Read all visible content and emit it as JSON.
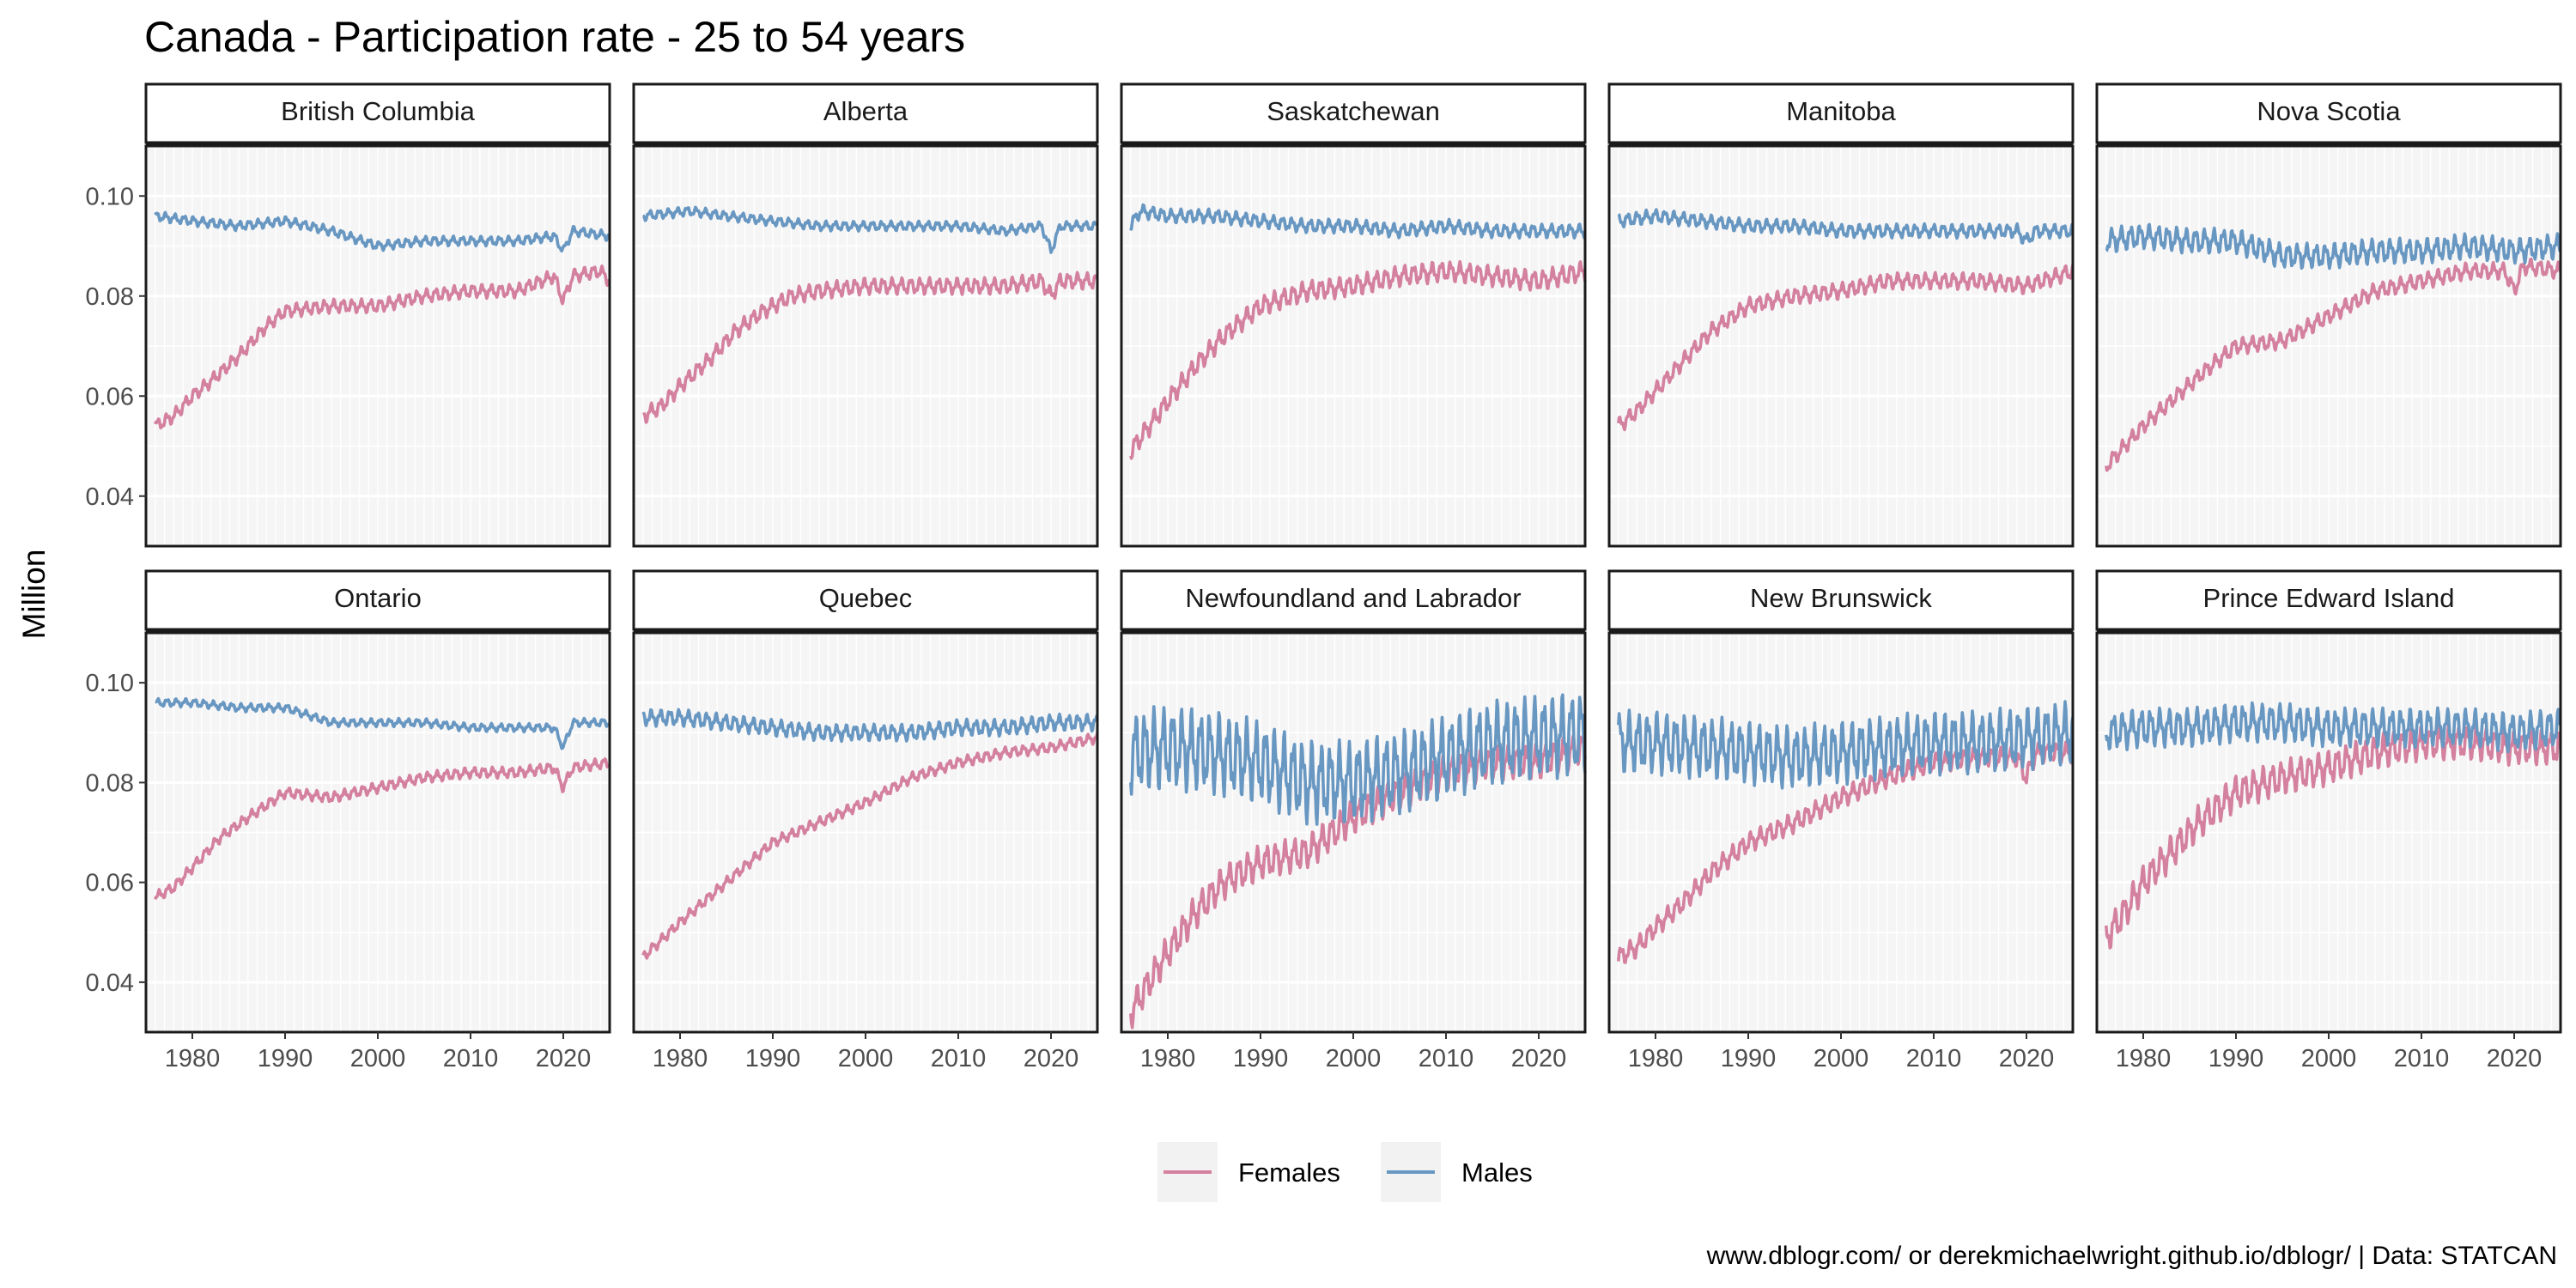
{
  "chart_data": {
    "type": "line",
    "title": "Canada - Participation rate - 25 to 54 years",
    "ylabel": "Million",
    "xlabel": "",
    "caption": "www.dblogr.com/ or derekmichaelwright.github.io/dblogr/ | Data: STATCAN",
    "xlim": [
      1975,
      2025
    ],
    "ylim": [
      0.03,
      0.11
    ],
    "x_ticks": [
      1980,
      1990,
      2000,
      2010,
      2020
    ],
    "x_tick_labels": [
      "1980",
      "1990",
      "2000",
      "2010",
      "2020"
    ],
    "y_ticks": [
      0.04,
      0.06,
      0.08,
      0.1
    ],
    "y_tick_labels": [
      "0.04",
      "0.06",
      "0.08",
      "0.10"
    ],
    "grid": true,
    "legend": {
      "position": "bottom",
      "entries": [
        {
          "name": "Females",
          "color": "#d4809f"
        },
        {
          "name": "Males",
          "color": "#6897c2"
        }
      ]
    },
    "panels": [
      {
        "name": "British Columbia",
        "series": [
          {
            "name": "Females",
            "x": [
              1976,
              1978,
              1980,
              1982,
              1985,
              1988,
              1990,
              1995,
              2000,
              2005,
              2010,
              2015,
              2019,
              2020,
              2021,
              2024,
              2025
            ],
            "y": [
              0.054,
              0.056,
              0.06,
              0.063,
              0.068,
              0.074,
              0.077,
              0.078,
              0.078,
              0.08,
              0.081,
              0.081,
              0.084,
              0.079,
              0.084,
              0.085,
              0.083
            ],
            "amp": 0.001
          },
          {
            "name": "Males",
            "x": [
              1976,
              1980,
              1985,
              1990,
              1995,
              2000,
              2005,
              2010,
              2015,
              2019,
              2020,
              2021,
              2025
            ],
            "y": [
              0.096,
              0.095,
              0.094,
              0.095,
              0.093,
              0.09,
              0.091,
              0.091,
              0.091,
              0.092,
              0.089,
              0.093,
              0.092
            ],
            "amp": 0.0007
          }
        ]
      },
      {
        "name": "Alberta",
        "series": [
          {
            "name": "Females",
            "x": [
              1976,
              1978,
              1980,
              1983,
              1986,
              1989,
              1992,
              1995,
              2000,
              2005,
              2010,
              2015,
              2019,
              2020,
              2021,
              2025
            ],
            "y": [
              0.056,
              0.058,
              0.062,
              0.067,
              0.073,
              0.077,
              0.08,
              0.081,
              0.082,
              0.082,
              0.082,
              0.082,
              0.083,
              0.08,
              0.083,
              0.083
            ],
            "amp": 0.0012
          },
          {
            "name": "Males",
            "x": [
              1976,
              1981,
              1985,
              1990,
              1995,
              2000,
              2005,
              2010,
              2015,
              2019,
              2020,
              2021,
              2025
            ],
            "y": [
              0.096,
              0.097,
              0.096,
              0.095,
              0.094,
              0.094,
              0.094,
              0.094,
              0.093,
              0.094,
              0.089,
              0.094,
              0.094
            ],
            "amp": 0.0007
          }
        ]
      },
      {
        "name": "Saskatchewan",
        "series": [
          {
            "name": "Females",
            "x": [
              1976,
              1978,
              1980,
              1983,
              1986,
              1990,
              1995,
              2000,
              2005,
              2010,
              2015,
              2020,
              2025
            ],
            "y": [
              0.049,
              0.054,
              0.059,
              0.066,
              0.072,
              0.078,
              0.081,
              0.082,
              0.084,
              0.085,
              0.084,
              0.083,
              0.085
            ],
            "amp": 0.0015
          },
          {
            "name": "Males",
            "x": [
              1976,
              1977,
              1980,
              1985,
              1990,
              1995,
              2000,
              2005,
              2010,
              2015,
              2020,
              2025
            ],
            "y": [
              0.094,
              0.097,
              0.096,
              0.096,
              0.095,
              0.094,
              0.094,
              0.093,
              0.094,
              0.093,
              0.093,
              0.093
            ],
            "amp": 0.001
          }
        ]
      },
      {
        "name": "Manitoba",
        "series": [
          {
            "name": "Females",
            "x": [
              1976,
              1978,
              1980,
              1983,
              1986,
              1990,
              1995,
              2000,
              2005,
              2010,
              2015,
              2020,
              2025
            ],
            "y": [
              0.054,
              0.057,
              0.061,
              0.067,
              0.073,
              0.078,
              0.08,
              0.081,
              0.083,
              0.083,
              0.083,
              0.082,
              0.085
            ],
            "amp": 0.0012
          },
          {
            "name": "Males",
            "x": [
              1976,
              1980,
              1985,
              1990,
              1995,
              2000,
              2005,
              2010,
              2015,
              2019,
              2020,
              2021,
              2025
            ],
            "y": [
              0.095,
              0.096,
              0.095,
              0.094,
              0.094,
              0.093,
              0.093,
              0.093,
              0.093,
              0.093,
              0.091,
              0.093,
              0.093
            ],
            "amp": 0.001
          }
        ]
      },
      {
        "name": "Nova Scotia",
        "series": [
          {
            "name": "Females",
            "x": [
              1976,
              1978,
              1980,
              1983,
              1986,
              1990,
              1995,
              2000,
              2005,
              2010,
              2015,
              2019,
              2020,
              2021,
              2025
            ],
            "y": [
              0.046,
              0.05,
              0.054,
              0.059,
              0.064,
              0.07,
              0.071,
              0.076,
              0.081,
              0.083,
              0.085,
              0.085,
              0.081,
              0.086,
              0.085
            ],
            "amp": 0.0012
          },
          {
            "name": "Males",
            "x": [
              1976,
              1980,
              1985,
              1990,
              1995,
              2000,
              2005,
              2010,
              2015,
              2020,
              2025
            ],
            "y": [
              0.091,
              0.092,
              0.091,
              0.091,
              0.088,
              0.088,
              0.089,
              0.089,
              0.09,
              0.089,
              0.09
            ],
            "amp": 0.0018
          }
        ]
      },
      {
        "name": "Ontario",
        "series": [
          {
            "name": "Females",
            "x": [
              1976,
              1978,
              1980,
              1983,
              1986,
              1990,
              1995,
              2000,
              2005,
              2010,
              2015,
              2019,
              2020,
              2021,
              2025
            ],
            "y": [
              0.057,
              0.059,
              0.063,
              0.069,
              0.073,
              0.078,
              0.077,
              0.079,
              0.081,
              0.082,
              0.082,
              0.083,
              0.079,
              0.083,
              0.084
            ],
            "amp": 0.0008
          },
          {
            "name": "Males",
            "x": [
              1976,
              1980,
              1985,
              1990,
              1995,
              2000,
              2005,
              2010,
              2015,
              2019,
              2020,
              2021,
              2025
            ],
            "y": [
              0.096,
              0.096,
              0.095,
              0.095,
              0.092,
              0.092,
              0.092,
              0.091,
              0.091,
              0.091,
              0.087,
              0.092,
              0.092
            ],
            "amp": 0.0006
          }
        ]
      },
      {
        "name": "Quebec",
        "series": [
          {
            "name": "Females",
            "x": [
              1976,
              1980,
              1985,
              1990,
              1995,
              2000,
              2005,
              2010,
              2015,
              2020,
              2025
            ],
            "y": [
              0.045,
              0.052,
              0.06,
              0.068,
              0.072,
              0.076,
              0.081,
              0.084,
              0.086,
              0.087,
              0.089
            ],
            "amp": 0.0008
          },
          {
            "name": "Males",
            "x": [
              1976,
              1980,
              1985,
              1990,
              1995,
              2000,
              2005,
              2010,
              2015,
              2020,
              2025
            ],
            "y": [
              0.093,
              0.093,
              0.092,
              0.091,
              0.09,
              0.09,
              0.09,
              0.091,
              0.091,
              0.092,
              0.092
            ],
            "amp": 0.0012
          }
        ]
      },
      {
        "name": "Newfoundland and Labrador",
        "series": [
          {
            "name": "Females",
            "x": [
              1976,
              1978,
              1980,
              1983,
              1986,
              1990,
              1995,
              2000,
              2005,
              2010,
              2015,
              2020,
              2025
            ],
            "y": [
              0.034,
              0.04,
              0.046,
              0.054,
              0.06,
              0.064,
              0.066,
              0.073,
              0.078,
              0.082,
              0.084,
              0.084,
              0.087
            ],
            "amp": 0.0025
          },
          {
            "name": "Males",
            "x": [
              1976,
              1980,
              1985,
              1990,
              1995,
              2000,
              2005,
              2010,
              2015,
              2020,
              2025
            ],
            "y": [
              0.086,
              0.087,
              0.086,
              0.084,
              0.08,
              0.08,
              0.082,
              0.085,
              0.088,
              0.089,
              0.09
            ],
            "amp": 0.006
          }
        ]
      },
      {
        "name": "New Brunswick",
        "series": [
          {
            "name": "Females",
            "x": [
              1976,
              1978,
              1980,
              1983,
              1986,
              1990,
              1995,
              2000,
              2005,
              2010,
              2015,
              2019,
              2020,
              2021,
              2025
            ],
            "y": [
              0.045,
              0.047,
              0.051,
              0.056,
              0.062,
              0.068,
              0.072,
              0.077,
              0.081,
              0.084,
              0.085,
              0.085,
              0.081,
              0.086,
              0.086
            ],
            "amp": 0.0015
          },
          {
            "name": "Males",
            "x": [
              1976,
              1980,
              1985,
              1990,
              1995,
              2000,
              2005,
              2010,
              2015,
              2020,
              2025
            ],
            "y": [
              0.088,
              0.088,
              0.087,
              0.086,
              0.085,
              0.086,
              0.087,
              0.088,
              0.088,
              0.089,
              0.09
            ],
            "amp": 0.0045
          }
        ]
      },
      {
        "name": "Prince Edward Island",
        "series": [
          {
            "name": "Females",
            "x": [
              1976,
              1978,
              1980,
              1983,
              1986,
              1990,
              1995,
              2000,
              2005,
              2010,
              2015,
              2020,
              2025
            ],
            "y": [
              0.049,
              0.054,
              0.06,
              0.066,
              0.072,
              0.078,
              0.081,
              0.083,
              0.086,
              0.088,
              0.088,
              0.087,
              0.087
            ],
            "amp": 0.0025
          },
          {
            "name": "Males",
            "x": [
              1976,
              1980,
              1985,
              1990,
              1995,
              2000,
              2005,
              2010,
              2015,
              2020,
              2025
            ],
            "y": [
              0.09,
              0.091,
              0.091,
              0.092,
              0.092,
              0.091,
              0.091,
              0.091,
              0.091,
              0.09,
              0.091
            ],
            "amp": 0.0028
          }
        ]
      }
    ]
  }
}
